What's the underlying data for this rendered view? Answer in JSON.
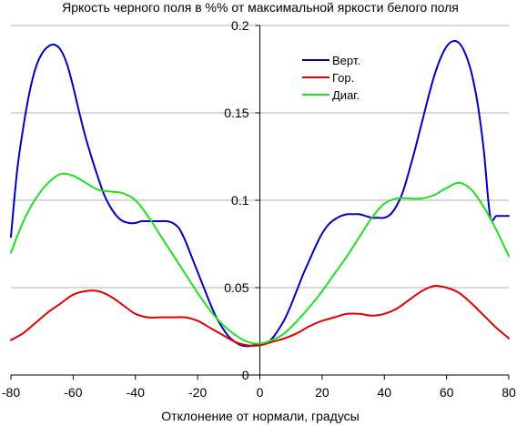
{
  "chart_data": {
    "type": "line",
    "title": "Яркость черного поля в %% от максимальной яркости белого поля",
    "xlabel": "Отклонение от нормали, градусы",
    "ylabel": "",
    "xlim": [
      -80,
      80
    ],
    "ylim": [
      0,
      0.2
    ],
    "x_ticks": [
      -80,
      -60,
      -40,
      -20,
      0,
      20,
      40,
      60,
      80
    ],
    "x_tick_labels": [
      "-80",
      "-60",
      "-40",
      "-20",
      "0",
      "20",
      "40",
      "60",
      "80"
    ],
    "y_ticks": [
      0,
      0.05,
      0.1,
      0.15,
      0.2
    ],
    "y_tick_labels": [
      "0",
      "0.05",
      "0.1",
      "0.15",
      "0.2"
    ],
    "grid": "horizontal",
    "legend_position": "top-right",
    "series": [
      {
        "name": "Верт.",
        "color": "#0000c0",
        "x": [
          -80,
          -78,
          -76,
          -74,
          -72,
          -70,
          -68,
          -66,
          -64,
          -62,
          -60,
          -58,
          -56,
          -54,
          -52,
          -50,
          -48,
          -46,
          -44,
          -42,
          -40,
          -38,
          -36,
          -34,
          -32,
          -30,
          -28,
          -26,
          -24,
          -22,
          -20,
          -18,
          -16,
          -14,
          -12,
          -10,
          -8,
          -6,
          -4,
          -2,
          0,
          2,
          4,
          6,
          8,
          10,
          12,
          14,
          16,
          18,
          20,
          22,
          24,
          26,
          28,
          30,
          32,
          34,
          36,
          38,
          40,
          42,
          44,
          46,
          48,
          50,
          52,
          54,
          56,
          58,
          60,
          62,
          64,
          66,
          68,
          70,
          72,
          74,
          76,
          78,
          80
        ],
        "values": [
          0.079,
          0.117,
          0.142,
          0.162,
          0.176,
          0.184,
          0.188,
          0.189,
          0.186,
          0.178,
          0.165,
          0.15,
          0.136,
          0.124,
          0.113,
          0.103,
          0.096,
          0.091,
          0.088,
          0.087,
          0.087,
          0.088,
          0.088,
          0.088,
          0.088,
          0.088,
          0.087,
          0.084,
          0.077,
          0.068,
          0.059,
          0.05,
          0.041,
          0.033,
          0.027,
          0.022,
          0.019,
          0.017,
          0.0165,
          0.017,
          0.0175,
          0.018,
          0.021,
          0.026,
          0.032,
          0.04,
          0.049,
          0.058,
          0.066,
          0.074,
          0.081,
          0.086,
          0.089,
          0.091,
          0.092,
          0.092,
          0.092,
          0.091,
          0.09,
          0.09,
          0.09,
          0.092,
          0.097,
          0.105,
          0.117,
          0.13,
          0.144,
          0.158,
          0.171,
          0.181,
          0.188,
          0.191,
          0.19,
          0.184,
          0.173,
          0.155,
          0.128,
          0.091,
          0.091,
          0.091,
          0.091
        ]
      },
      {
        "name": "Гор.",
        "color": "#e00000",
        "x": [
          -80,
          -76,
          -72,
          -68,
          -64,
          -60,
          -56,
          -52,
          -48,
          -44,
          -40,
          -36,
          -32,
          -28,
          -24,
          -20,
          -16,
          -12,
          -8,
          -4,
          0,
          4,
          8,
          12,
          16,
          20,
          24,
          28,
          32,
          36,
          40,
          44,
          48,
          52,
          56,
          60,
          64,
          68,
          72,
          76,
          80
        ],
        "values": [
          0.02,
          0.024,
          0.03,
          0.036,
          0.041,
          0.046,
          0.048,
          0.048,
          0.045,
          0.04,
          0.035,
          0.033,
          0.033,
          0.033,
          0.033,
          0.031,
          0.027,
          0.023,
          0.019,
          0.017,
          0.017,
          0.019,
          0.021,
          0.024,
          0.028,
          0.031,
          0.033,
          0.035,
          0.035,
          0.034,
          0.035,
          0.038,
          0.043,
          0.048,
          0.051,
          0.05,
          0.047,
          0.041,
          0.034,
          0.027,
          0.021
        ]
      },
      {
        "name": "Диаг.",
        "color": "#20e020",
        "x": [
          -80,
          -76,
          -72,
          -68,
          -64,
          -60,
          -56,
          -52,
          -48,
          -44,
          -40,
          -36,
          -32,
          -28,
          -24,
          -20,
          -16,
          -12,
          -8,
          -4,
          0,
          4,
          8,
          12,
          16,
          20,
          24,
          28,
          32,
          36,
          40,
          44,
          48,
          52,
          56,
          60,
          64,
          68,
          72,
          76,
          80
        ],
        "values": [
          0.07,
          0.088,
          0.101,
          0.11,
          0.115,
          0.114,
          0.11,
          0.106,
          0.105,
          0.104,
          0.1,
          0.091,
          0.08,
          0.069,
          0.058,
          0.047,
          0.037,
          0.029,
          0.023,
          0.019,
          0.018,
          0.02,
          0.024,
          0.031,
          0.039,
          0.048,
          0.058,
          0.068,
          0.079,
          0.09,
          0.098,
          0.101,
          0.101,
          0.101,
          0.103,
          0.107,
          0.11,
          0.106,
          0.096,
          0.083,
          0.068
        ]
      }
    ]
  }
}
